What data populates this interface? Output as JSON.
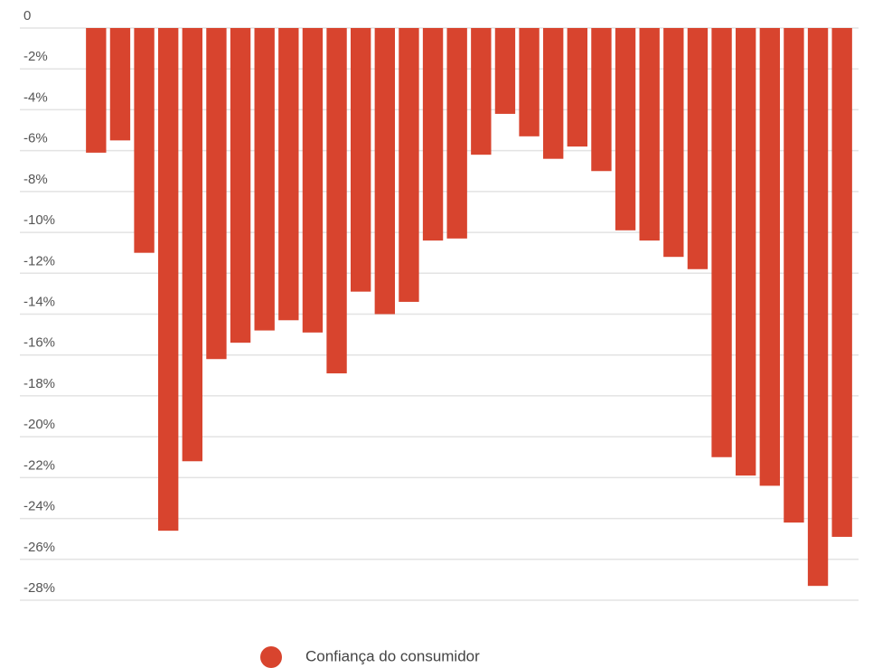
{
  "chart_data": {
    "type": "bar",
    "categories": [
      null,
      null,
      null,
      null,
      null,
      null,
      null,
      null,
      null,
      null,
      null,
      null,
      null,
      null,
      null,
      null,
      null,
      null,
      null,
      null,
      null,
      null,
      null,
      null,
      null,
      null,
      null,
      null,
      null,
      null,
      null,
      null
    ],
    "series": [
      {
        "name": "Confiança do consumidor",
        "color": "#d8442e",
        "values": [
          -6.1,
          -5.5,
          -11.0,
          -24.6,
          -21.2,
          -16.2,
          -15.4,
          -14.8,
          -14.3,
          -14.9,
          -16.9,
          -12.9,
          -14.0,
          -13.4,
          -10.4,
          -10.3,
          -6.2,
          -4.2,
          -5.3,
          -6.4,
          -5.8,
          -7.0,
          -9.9,
          -10.4,
          -11.2,
          -11.8,
          -21.0,
          -21.9,
          -22.4,
          -24.2,
          -27.3,
          -24.9
        ]
      }
    ],
    "ylim": [
      -28,
      0
    ],
    "yticks": [
      0,
      {
        "value": -2,
        "label": "-2%"
      },
      {
        "value": -4,
        "label": "-4%"
      },
      {
        "value": -6,
        "label": "-6%"
      },
      {
        "value": -8,
        "label": "-8%"
      },
      {
        "value": -10,
        "label": "-10%"
      },
      {
        "value": -12,
        "label": "-12%"
      },
      {
        "value": -14,
        "label": "-14%"
      },
      {
        "value": -16,
        "label": "-16%"
      },
      {
        "value": -18,
        "label": "-18%"
      },
      {
        "value": -20,
        "label": "-20%"
      },
      {
        "value": -22,
        "label": "-22%"
      },
      {
        "value": -24,
        "label": "-24%"
      },
      {
        "value": -26,
        "label": "-26%"
      },
      {
        "value": -28,
        "label": "-28%"
      }
    ],
    "grid": true
  }
}
